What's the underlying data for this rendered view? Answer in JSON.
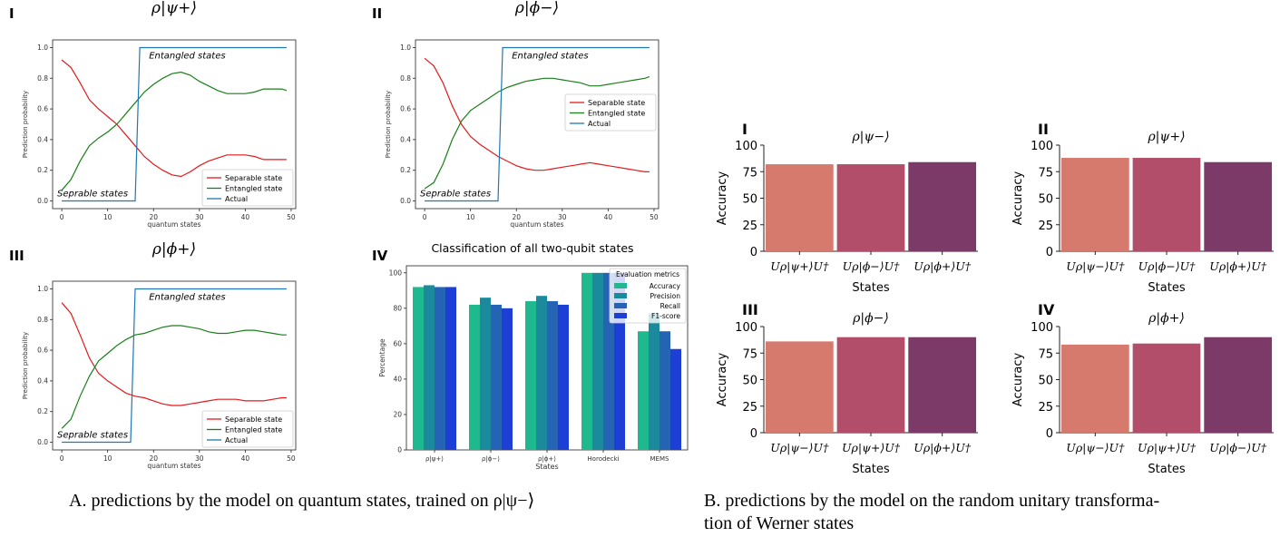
{
  "captions": {
    "a": "A. predictions by the model on quantum states, trained on ρ|ψ−⟩",
    "b_line1": "B. predictions by the model on the random unitary transforma-",
    "b_line2": "tion of Werner states"
  },
  "colors": {
    "separable": "#e41a1c",
    "entangled": "#1a7f1a",
    "actual": "#1f77b4",
    "accuracy": "#1fb98f",
    "precision": "#1a8a9c",
    "recall": "#2563b5",
    "f1": "#1d3fd6",
    "bar1": "#d67a6e",
    "bar2": "#b24e6a",
    "bar3": "#7b3a68"
  },
  "chart_data": [
    {
      "type": "line",
      "roman": "I",
      "title": "ρ|ψ+⟩",
      "xlabel": "quantum states",
      "ylabel": "Prediction probability",
      "xlim": [
        -2,
        51
      ],
      "ylim": [
        -0.05,
        1.05
      ],
      "xticks": [
        0,
        10,
        20,
        30,
        40,
        50
      ],
      "yticks": [
        0.0,
        0.2,
        0.4,
        0.6,
        0.8,
        1.0
      ],
      "legend": "lower-right",
      "annotations": [
        "Entangled states",
        "Seprable states"
      ],
      "series": [
        {
          "name": "Separable state",
          "x": [
            0,
            2,
            4,
            6,
            8,
            10,
            12,
            14,
            16,
            18,
            20,
            22,
            24,
            26,
            28,
            30,
            32,
            34,
            36,
            38,
            40,
            42,
            44,
            46,
            48,
            49
          ],
          "y": [
            0.92,
            0.87,
            0.77,
            0.66,
            0.6,
            0.55,
            0.5,
            0.43,
            0.36,
            0.29,
            0.24,
            0.2,
            0.17,
            0.16,
            0.19,
            0.23,
            0.26,
            0.28,
            0.3,
            0.3,
            0.3,
            0.29,
            0.27,
            0.27,
            0.27,
            0.27
          ]
        },
        {
          "name": "Entangled state",
          "x": [
            0,
            2,
            4,
            6,
            8,
            10,
            12,
            14,
            16,
            18,
            20,
            22,
            24,
            26,
            28,
            30,
            32,
            34,
            36,
            38,
            40,
            42,
            44,
            46,
            48,
            49
          ],
          "y": [
            0.07,
            0.14,
            0.26,
            0.36,
            0.41,
            0.45,
            0.5,
            0.57,
            0.64,
            0.71,
            0.76,
            0.8,
            0.83,
            0.84,
            0.82,
            0.78,
            0.75,
            0.72,
            0.7,
            0.7,
            0.7,
            0.71,
            0.73,
            0.73,
            0.73,
            0.72
          ]
        },
        {
          "name": "Actual",
          "x": [
            0,
            16,
            17,
            49
          ],
          "y": [
            0,
            0,
            1,
            1
          ]
        }
      ]
    },
    {
      "type": "line",
      "roman": "II",
      "title": "ρ|ϕ−⟩",
      "xlabel": "quantum states",
      "ylabel": "Prediction probability",
      "xlim": [
        -2,
        51
      ],
      "ylim": [
        -0.05,
        1.05
      ],
      "xticks": [
        0,
        10,
        20,
        30,
        40,
        50
      ],
      "yticks": [
        0.0,
        0.2,
        0.4,
        0.6,
        0.8,
        1.0
      ],
      "legend": "center-right",
      "annotations": [
        "Entangled states",
        "Seprable states"
      ],
      "series": [
        {
          "name": "Separable state",
          "x": [
            0,
            2,
            4,
            6,
            8,
            10,
            12,
            14,
            16,
            18,
            20,
            22,
            24,
            26,
            28,
            30,
            32,
            34,
            36,
            38,
            40,
            42,
            44,
            46,
            48,
            49
          ],
          "y": [
            0.93,
            0.88,
            0.77,
            0.62,
            0.5,
            0.42,
            0.37,
            0.33,
            0.29,
            0.26,
            0.23,
            0.21,
            0.2,
            0.2,
            0.21,
            0.22,
            0.23,
            0.24,
            0.25,
            0.24,
            0.23,
            0.22,
            0.21,
            0.2,
            0.19,
            0.19
          ]
        },
        {
          "name": "Entangled state",
          "x": [
            0,
            2,
            4,
            6,
            8,
            10,
            12,
            14,
            16,
            18,
            20,
            22,
            24,
            26,
            28,
            30,
            32,
            34,
            36,
            38,
            40,
            42,
            44,
            46,
            48,
            49
          ],
          "y": [
            0.08,
            0.12,
            0.24,
            0.4,
            0.52,
            0.59,
            0.63,
            0.67,
            0.71,
            0.74,
            0.76,
            0.78,
            0.79,
            0.8,
            0.8,
            0.79,
            0.78,
            0.77,
            0.75,
            0.75,
            0.76,
            0.77,
            0.78,
            0.79,
            0.8,
            0.81
          ]
        },
        {
          "name": "Actual",
          "x": [
            0,
            16,
            17,
            49
          ],
          "y": [
            0,
            0,
            1,
            1
          ]
        }
      ]
    },
    {
      "type": "line",
      "roman": "III",
      "title": "ρ|ϕ+⟩",
      "xlabel": "quantum states",
      "ylabel": "Prediction probability",
      "xlim": [
        -2,
        51
      ],
      "ylim": [
        -0.05,
        1.05
      ],
      "xticks": [
        0,
        10,
        20,
        30,
        40,
        50
      ],
      "yticks": [
        0.0,
        0.2,
        0.4,
        0.6,
        0.8,
        1.0
      ],
      "legend": "lower-right",
      "annotations": [
        "Entangled states",
        "Seprable states"
      ],
      "series": [
        {
          "name": "Separable state",
          "x": [
            0,
            2,
            4,
            6,
            8,
            10,
            12,
            14,
            16,
            18,
            20,
            22,
            24,
            26,
            28,
            30,
            32,
            34,
            36,
            38,
            40,
            42,
            44,
            46,
            48,
            49
          ],
          "y": [
            0.91,
            0.84,
            0.7,
            0.55,
            0.45,
            0.4,
            0.36,
            0.32,
            0.3,
            0.29,
            0.27,
            0.25,
            0.24,
            0.24,
            0.25,
            0.26,
            0.27,
            0.28,
            0.28,
            0.28,
            0.27,
            0.27,
            0.27,
            0.28,
            0.29,
            0.29
          ]
        },
        {
          "name": "Entangled state",
          "x": [
            0,
            2,
            4,
            6,
            8,
            10,
            12,
            14,
            16,
            18,
            20,
            22,
            24,
            26,
            28,
            30,
            32,
            34,
            36,
            38,
            40,
            42,
            44,
            46,
            48,
            49
          ],
          "y": [
            0.09,
            0.15,
            0.3,
            0.43,
            0.53,
            0.58,
            0.63,
            0.67,
            0.7,
            0.71,
            0.73,
            0.75,
            0.76,
            0.76,
            0.75,
            0.74,
            0.72,
            0.71,
            0.71,
            0.72,
            0.73,
            0.73,
            0.72,
            0.71,
            0.7,
            0.7
          ]
        },
        {
          "name": "Actual",
          "x": [
            0,
            15,
            16,
            49
          ],
          "y": [
            0,
            0,
            1,
            1
          ]
        }
      ]
    },
    {
      "type": "bar",
      "roman": "IV",
      "title": "Classification of all two-qubit states",
      "xlabel": "States",
      "ylabel": "Percentage",
      "ylim": [
        0,
        104
      ],
      "yticks": [
        0,
        20,
        40,
        60,
        80,
        100
      ],
      "categories": [
        "ρ|ψ+⟩",
        "ρ|ϕ−⟩",
        "ρ|ϕ+⟩",
        "Horodecki",
        "MEMS"
      ],
      "legend": "top-right",
      "legend_title": "Evaluation metrics",
      "series": [
        {
          "name": "Accuracy",
          "values": [
            92,
            82,
            84,
            100,
            67
          ]
        },
        {
          "name": "Precision",
          "values": [
            93,
            86,
            87,
            100,
            77
          ]
        },
        {
          "name": "Recall",
          "values": [
            92,
            82,
            84,
            100,
            67
          ]
        },
        {
          "name": "F1-score",
          "values": [
            92,
            80,
            82,
            100,
            57
          ]
        }
      ]
    },
    {
      "type": "bar",
      "roman": "I",
      "title": "ρ|ψ−⟩",
      "xlabel": "States",
      "ylabel": "Accuracy",
      "ylim": [
        0,
        100
      ],
      "yticks": [
        0,
        25,
        50,
        75,
        100
      ],
      "categories": [
        "Uρ|ψ+⟩U†",
        "Uρ|ϕ−⟩U†",
        "Uρ|ϕ+⟩U†"
      ],
      "values": [
        82,
        82,
        84
      ]
    },
    {
      "type": "bar",
      "roman": "II",
      "title": "ρ|ψ+⟩",
      "xlabel": "States",
      "ylabel": "Accuracy",
      "ylim": [
        0,
        100
      ],
      "yticks": [
        0,
        25,
        50,
        75,
        100
      ],
      "categories": [
        "Uρ|ψ−⟩U†",
        "Uρ|ϕ−⟩U†",
        "Uρ|ϕ+⟩U†"
      ],
      "values": [
        88,
        88,
        84
      ]
    },
    {
      "type": "bar",
      "roman": "III",
      "title": "ρ|ϕ−⟩",
      "xlabel": "States",
      "ylabel": "Accuracy",
      "ylim": [
        0,
        100
      ],
      "yticks": [
        0,
        25,
        50,
        75,
        100
      ],
      "categories": [
        "Uρ|ψ−⟩U†",
        "Uρ|ψ+⟩U†",
        "Uρ|ϕ+⟩U†"
      ],
      "values": [
        86,
        90,
        90
      ]
    },
    {
      "type": "bar",
      "roman": "IV",
      "title": "ρ|ϕ+⟩",
      "xlabel": "States",
      "ylabel": "Accuracy",
      "ylim": [
        0,
        100
      ],
      "yticks": [
        0,
        25,
        50,
        75,
        100
      ],
      "categories": [
        "Uρ|ψ−⟩U†",
        "Uρ|ψ+⟩U†",
        "Uρ|ϕ−⟩U†"
      ],
      "values": [
        83,
        84,
        90
      ]
    }
  ]
}
